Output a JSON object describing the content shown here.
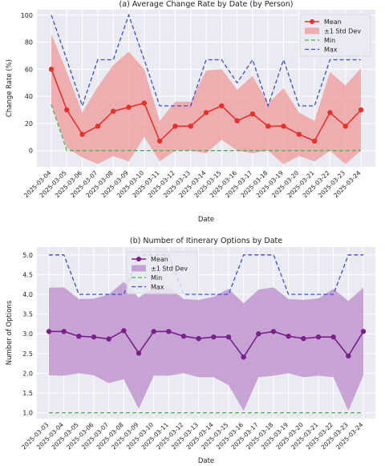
{
  "chart_data": [
    {
      "type": "line",
      "title": "(a) Average Change Rate by Date (by Person)",
      "xlabel": "Date",
      "ylabel": "Change Rate (%)",
      "ylim": [
        -12,
        104
      ],
      "yticks": [
        0,
        20,
        40,
        60,
        80,
        100
      ],
      "grid": true,
      "legend": "top-right",
      "categories": [
        "2025-03-04",
        "2025-03-05",
        "2025-03-06",
        "2025-03-07",
        "2025-03-08",
        "2025-03-09",
        "2025-03-10",
        "2025-03-11",
        "2025-03-12",
        "2025-03-13",
        "2025-03-14",
        "2025-03-15",
        "2025-03-16",
        "2025-03-17",
        "2025-03-18",
        "2025-03-19",
        "2025-03-20",
        "2025-03-21",
        "2025-03-22",
        "2025-03-23",
        "2025-03-24"
      ],
      "series": [
        {
          "name": "Mean",
          "color": "#e8312b",
          "values": [
            60,
            30,
            12,
            18,
            29,
            32,
            35,
            7,
            18,
            18,
            28,
            33,
            22,
            27,
            18,
            18,
            12,
            7,
            28,
            18,
            30
          ]
        },
        {
          "name": "±1 Std Dev",
          "color": "#ef9a9a",
          "lower": [
            34,
            2,
            -5,
            -10,
            -4,
            -8,
            10,
            -8,
            0,
            0,
            -2,
            8,
            0,
            -2,
            0,
            -10,
            -4,
            -8,
            0,
            -10,
            0
          ],
          "upper": [
            86,
            58,
            28,
            47,
            63,
            73,
            60,
            22,
            36,
            36,
            59,
            60,
            45,
            55,
            35,
            46,
            28,
            22,
            58,
            48,
            61
          ]
        },
        {
          "name": "Min",
          "color": "#4caf50",
          "values": [
            34,
            0,
            0,
            0,
            0,
            0,
            0,
            0,
            0,
            0,
            0,
            0,
            0,
            0,
            0,
            0,
            0,
            0,
            0,
            0,
            0
          ]
        },
        {
          "name": "Max",
          "color": "#3b4de0",
          "values": [
            100,
            67,
            33,
            67,
            67,
            100,
            67,
            33,
            33,
            33,
            67,
            67,
            50,
            67,
            33,
            67,
            33,
            33,
            67,
            67,
            67
          ]
        }
      ]
    },
    {
      "type": "line",
      "title": "(b) Number of Itinerary Options by Date",
      "xlabel": "Date",
      "ylabel": "Number of Options",
      "ylim": [
        0.85,
        5.2
      ],
      "yticks": [
        1.0,
        1.5,
        2.0,
        2.5,
        3.0,
        3.5,
        4.0,
        4.5,
        5.0
      ],
      "grid": true,
      "legend": "top-left",
      "categories": [
        "2025-03-03",
        "2025-03-04",
        "2025-03-05",
        "2025-03-06",
        "2025-03-07",
        "2025-03-08",
        "2025-03-09",
        "2025-03-10",
        "2025-03-11",
        "2025-03-12",
        "2025-03-13",
        "2025-03-14",
        "2025-03-15",
        "2025-03-16",
        "2025-03-17",
        "2025-03-18",
        "2025-03-19",
        "2025-03-20",
        "2025-03-21",
        "2025-03-22",
        "2025-03-23",
        "2025-03-24"
      ],
      "series": [
        {
          "name": "Mean",
          "color": "#7b1f8a",
          "values": [
            3.06,
            3.06,
            2.94,
            2.92,
            2.87,
            3.08,
            2.51,
            3.06,
            3.06,
            2.94,
            2.88,
            2.92,
            2.92,
            2.41,
            3.0,
            3.06,
            2.94,
            2.88,
            2.92,
            2.92,
            2.44,
            3.06
          ]
        },
        {
          "name": "±1 Std Dev",
          "color": "#b98bc9",
          "lower": [
            1.95,
            1.94,
            2.0,
            1.95,
            1.75,
            1.85,
            1.1,
            1.94,
            1.94,
            2.0,
            1.9,
            1.9,
            1.7,
            1.05,
            1.9,
            1.94,
            2.0,
            1.9,
            1.94,
            1.9,
            1.05,
            1.95
          ],
          "upper": [
            4.17,
            4.18,
            3.88,
            3.89,
            4.0,
            4.32,
            3.92,
            4.18,
            4.18,
            3.88,
            3.86,
            3.94,
            4.14,
            3.77,
            4.12,
            4.18,
            3.88,
            3.86,
            3.9,
            4.14,
            3.83,
            4.17
          ]
        },
        {
          "name": "Min",
          "color": "#4caf50",
          "values": [
            1,
            1,
            1,
            1,
            1,
            1,
            1,
            1,
            1,
            1,
            1,
            1,
            1,
            1,
            1,
            1,
            1,
            1,
            1,
            1,
            1,
            1
          ]
        },
        {
          "name": "Max",
          "color": "#3b4de0",
          "values": [
            5,
            5,
            4,
            4,
            4,
            4,
            5,
            5,
            5,
            4,
            4,
            4,
            4,
            5,
            5,
            5,
            4,
            4,
            4,
            4,
            5,
            5
          ]
        }
      ]
    }
  ]
}
